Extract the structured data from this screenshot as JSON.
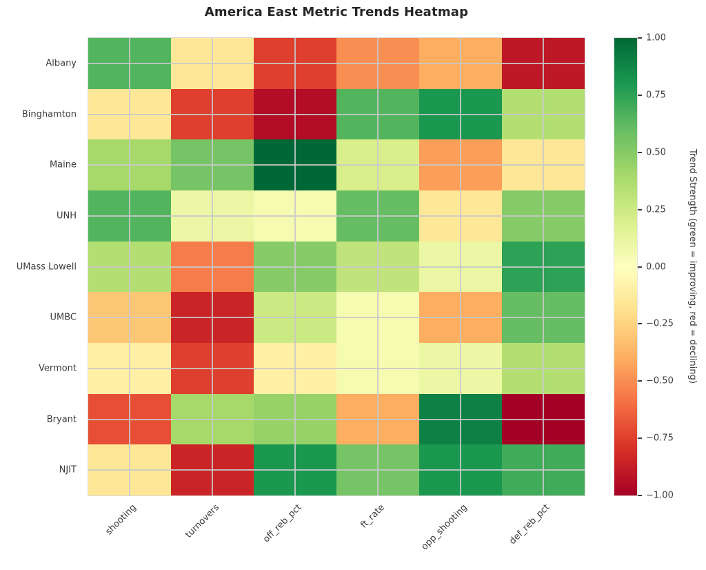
{
  "title": "America East Metric Trends Heatmap",
  "chart_data": {
    "type": "heatmap",
    "title": "America East Metric Trends Heatmap",
    "rows": [
      "Albany",
      "Binghamton",
      "Maine",
      "UNH",
      "UMass Lowell",
      "UMBC",
      "Vermont",
      "Bryant",
      "NJIT"
    ],
    "columns": [
      "shooting",
      "turnovers",
      "off_reb_pct",
      "ft_rate",
      "opp_shooting",
      "def_reb_pct"
    ],
    "values": [
      [
        0.65,
        -0.15,
        -0.75,
        -0.5,
        -0.4,
        -0.9
      ],
      [
        -0.15,
        -0.75,
        -0.95,
        0.65,
        0.8,
        0.35
      ],
      [
        0.4,
        0.55,
        1.0,
        0.2,
        -0.45,
        -0.15
      ],
      [
        0.65,
        0.1,
        0.05,
        0.6,
        -0.15,
        0.5
      ],
      [
        0.35,
        -0.55,
        0.5,
        0.3,
        0.1,
        0.75
      ],
      [
        -0.3,
        -0.85,
        0.25,
        0.05,
        -0.4,
        0.6
      ],
      [
        -0.1,
        -0.75,
        -0.1,
        0.05,
        0.1,
        0.35
      ],
      [
        -0.7,
        0.4,
        0.45,
        -0.4,
        0.9,
        -1.0
      ],
      [
        -0.15,
        -0.85,
        0.8,
        0.55,
        0.8,
        0.7
      ]
    ],
    "vmin": -1,
    "vmax": 1,
    "colormap": "RdYlGn",
    "grid": true,
    "legend_position": "right-colorbar",
    "colorbar_label": "Trend Strength (green = improving, red = declining)",
    "colorbar_ticks": [
      "1.00",
      "0.75",
      "0.50",
      "0.25",
      "0.00",
      "−0.25",
      "−0.50",
      "−0.75",
      "−1.00"
    ]
  },
  "colors": {
    "background": "#ffffff",
    "title_text": "#262626",
    "tick_text": "#3b3b3b",
    "grid_line": "#c8c8c8",
    "colormap_stops": [
      "#a50026",
      "#d73027",
      "#f46d43",
      "#fdae61",
      "#fee08b",
      "#ffffbf",
      "#d9ef8b",
      "#a6d96a",
      "#66bd63",
      "#1a9850",
      "#006837"
    ]
  }
}
